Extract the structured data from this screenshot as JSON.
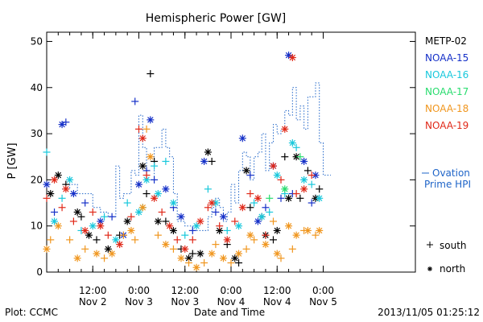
{
  "chart_data": {
    "type": "scatter",
    "title": "Hemispheric Power [GW]",
    "ylabel": "P [GW]",
    "xlabel": "Date and Time",
    "ylim": [
      0,
      52
    ],
    "xlim": [
      0,
      96
    ],
    "yticks": [
      0,
      10,
      20,
      30,
      40,
      50
    ],
    "xticks": [
      {
        "x": 12,
        "time": "12:00",
        "date": "Nov 2"
      },
      {
        "x": 24,
        "time": "0:00",
        "date": "Nov 3"
      },
      {
        "x": 36,
        "time": "12:00",
        "date": "Nov 3"
      },
      {
        "x": 48,
        "time": "0:00",
        "date": "Nov 4"
      },
      {
        "x": 60,
        "time": "12:00",
        "date": "Nov 4"
      },
      {
        "x": 72,
        "time": "0:00",
        "date": "Nov 5"
      }
    ],
    "x_unit": "hours since 2013-11-01 12:00",
    "grid": false,
    "legend_position": "right",
    "footer_left": "Plot: CCMC",
    "footer_right": "2013/11/05 01:25:12",
    "marker_legend": [
      {
        "symbol": "+",
        "label": "south"
      },
      {
        "symbol": "*",
        "label": "north"
      }
    ],
    "series": [
      {
        "name": "METP-02",
        "color": "#000000",
        "points": [
          [
            1,
            17,
            "n"
          ],
          [
            3,
            21,
            "n"
          ],
          [
            5,
            19,
            "p"
          ],
          [
            8,
            13,
            "n"
          ],
          [
            9,
            12,
            "p"
          ],
          [
            11,
            8,
            "n"
          ],
          [
            13,
            7,
            "p"
          ],
          [
            16,
            5,
            "n"
          ],
          [
            19,
            8,
            "p"
          ],
          [
            21,
            11,
            "n"
          ],
          [
            25,
            23,
            "n"
          ],
          [
            26,
            17,
            "p"
          ],
          [
            27,
            43,
            "p"
          ],
          [
            28,
            24,
            "p"
          ],
          [
            29,
            11,
            "n"
          ],
          [
            31,
            11,
            "p"
          ],
          [
            33,
            9,
            "n"
          ],
          [
            35,
            5,
            "p"
          ],
          [
            37,
            3,
            "n"
          ],
          [
            38,
            4,
            "p"
          ],
          [
            40,
            4,
            "n"
          ],
          [
            42,
            26,
            "n"
          ],
          [
            43,
            24,
            "p"
          ],
          [
            45,
            9,
            "n"
          ],
          [
            47,
            6,
            "p"
          ],
          [
            49,
            3,
            "n"
          ],
          [
            50,
            2,
            "p"
          ],
          [
            52,
            22,
            "n"
          ],
          [
            53,
            14,
            "p"
          ],
          [
            56,
            12,
            "p"
          ],
          [
            57,
            8,
            "n"
          ],
          [
            59,
            7,
            "p"
          ],
          [
            60,
            9,
            "n"
          ],
          [
            62,
            25,
            "p"
          ],
          [
            63,
            16,
            "n"
          ],
          [
            65,
            25,
            "n"
          ],
          [
            66,
            16,
            "p"
          ],
          [
            68,
            22,
            "p"
          ],
          [
            70,
            16,
            "n"
          ],
          [
            71,
            18,
            "p"
          ]
        ]
      },
      {
        "name": "NOAA-15",
        "color": "#1530c8",
        "points": [
          [
            0,
            19,
            "n"
          ],
          [
            2,
            13,
            "p"
          ],
          [
            4,
            32,
            "n"
          ],
          [
            5,
            32.5,
            "p"
          ],
          [
            7,
            17,
            "n"
          ],
          [
            10,
            15,
            "p"
          ],
          [
            14,
            11,
            "n"
          ],
          [
            17,
            12,
            "p"
          ],
          [
            20,
            8,
            "n"
          ],
          [
            23,
            37,
            "p"
          ],
          [
            24,
            19,
            "n"
          ],
          [
            26,
            22,
            "p"
          ],
          [
            27,
            33,
            "n"
          ],
          [
            28,
            20,
            "p"
          ],
          [
            31,
            18,
            "n"
          ],
          [
            33,
            14,
            "p"
          ],
          [
            35,
            12,
            "n"
          ],
          [
            38,
            9,
            "p"
          ],
          [
            41,
            24,
            "n"
          ],
          [
            44,
            13,
            "p"
          ],
          [
            46,
            12,
            "n"
          ],
          [
            51,
            29,
            "n"
          ],
          [
            53,
            21,
            "p"
          ],
          [
            55,
            11,
            "n"
          ],
          [
            57,
            14,
            "p"
          ],
          [
            59,
            23,
            "n"
          ],
          [
            61,
            16,
            "p"
          ],
          [
            63,
            47,
            "n"
          ],
          [
            64,
            17,
            "p"
          ],
          [
            67,
            24,
            "n"
          ],
          [
            69,
            15,
            "p"
          ],
          [
            70,
            21,
            "n"
          ]
        ]
      },
      {
        "name": "NOAA-16",
        "color": "#18c8dc",
        "points": [
          [
            0,
            26,
            "p"
          ],
          [
            2,
            11,
            "n"
          ],
          [
            4,
            16,
            "p"
          ],
          [
            6,
            20,
            "n"
          ],
          [
            9,
            9,
            "p"
          ],
          [
            12,
            10,
            "n"
          ],
          [
            15,
            12,
            "p"
          ],
          [
            18,
            7,
            "n"
          ],
          [
            21,
            15,
            "p"
          ],
          [
            24,
            13,
            "n"
          ],
          [
            25,
            14,
            "p"
          ],
          [
            26,
            20,
            "n"
          ],
          [
            28,
            23,
            "p"
          ],
          [
            29,
            17,
            "n"
          ],
          [
            31,
            24,
            "p"
          ],
          [
            33,
            15,
            "n"
          ],
          [
            36,
            8,
            "p"
          ],
          [
            39,
            10,
            "n"
          ],
          [
            42,
            18,
            "p"
          ],
          [
            44,
            15,
            "n"
          ],
          [
            47,
            9,
            "p"
          ],
          [
            50,
            10,
            "n"
          ],
          [
            54,
            15,
            "p"
          ],
          [
            56,
            12,
            "n"
          ],
          [
            58,
            13,
            "p"
          ],
          [
            60,
            21,
            "n"
          ],
          [
            62,
            17,
            "p"
          ],
          [
            64,
            28,
            "n"
          ],
          [
            65,
            27,
            "p"
          ],
          [
            67,
            20,
            "n"
          ],
          [
            69,
            19,
            "p"
          ],
          [
            71,
            16,
            "n"
          ]
        ]
      },
      {
        "name": "NOAA-17",
        "color": "#28dc6e",
        "points": [
          [
            58,
            16,
            "p"
          ],
          [
            62,
            18,
            "n"
          ],
          [
            66,
            25,
            "p"
          ]
        ]
      },
      {
        "name": "NOAA-18",
        "color": "#f0961e",
        "points": [
          [
            0,
            5,
            "n"
          ],
          [
            1,
            7,
            "p"
          ],
          [
            3,
            10,
            "n"
          ],
          [
            6,
            7,
            "p"
          ],
          [
            8,
            3,
            "n"
          ],
          [
            10,
            5,
            "p"
          ],
          [
            13,
            4,
            "n"
          ],
          [
            15,
            3,
            "p"
          ],
          [
            17,
            4,
            "n"
          ],
          [
            20,
            8,
            "p"
          ],
          [
            22,
            9,
            "n"
          ],
          [
            23,
            7,
            "p"
          ],
          [
            25,
            14,
            "n"
          ],
          [
            26,
            31,
            "p"
          ],
          [
            27,
            25,
            "n"
          ],
          [
            29,
            8,
            "p"
          ],
          [
            31,
            6,
            "n"
          ],
          [
            33,
            5,
            "p"
          ],
          [
            35,
            3,
            "n"
          ],
          [
            37,
            2,
            "p"
          ],
          [
            39,
            1,
            "n"
          ],
          [
            41,
            2,
            "p"
          ],
          [
            43,
            4,
            "n"
          ],
          [
            44,
            6,
            "p"
          ],
          [
            46,
            3,
            "n"
          ],
          [
            48,
            2,
            "p"
          ],
          [
            50,
            4,
            "n"
          ],
          [
            52,
            5,
            "p"
          ],
          [
            53,
            8,
            "n"
          ],
          [
            54,
            7,
            "p"
          ],
          [
            57,
            6,
            "n"
          ],
          [
            59,
            11,
            "p"
          ],
          [
            60,
            4,
            "n"
          ],
          [
            61,
            3,
            "p"
          ],
          [
            63,
            10,
            "n"
          ],
          [
            64,
            5,
            "p"
          ],
          [
            65,
            8,
            "n"
          ],
          [
            67,
            9,
            "p"
          ],
          [
            68,
            9,
            "n"
          ],
          [
            70,
            8,
            "p"
          ],
          [
            71,
            9,
            "n"
          ]
        ]
      },
      {
        "name": "NOAA-19",
        "color": "#e02818",
        "points": [
          [
            0,
            16,
            "p"
          ],
          [
            2,
            20,
            "n"
          ],
          [
            4,
            14,
            "p"
          ],
          [
            5,
            18,
            "n"
          ],
          [
            7,
            11,
            "p"
          ],
          [
            10,
            9,
            "n"
          ],
          [
            12,
            13,
            "p"
          ],
          [
            14,
            10,
            "n"
          ],
          [
            16,
            8,
            "p"
          ],
          [
            19,
            6,
            "n"
          ],
          [
            22,
            12,
            "p"
          ],
          [
            24,
            31,
            "p"
          ],
          [
            25,
            29,
            "n"
          ],
          [
            26,
            21,
            "p"
          ],
          [
            28,
            16,
            "n"
          ],
          [
            30,
            13,
            "p"
          ],
          [
            32,
            10,
            "n"
          ],
          [
            34,
            7,
            "p"
          ],
          [
            36,
            5,
            "n"
          ],
          [
            38,
            7,
            "p"
          ],
          [
            40,
            11,
            "n"
          ],
          [
            42,
            14,
            "p"
          ],
          [
            43,
            15,
            "n"
          ],
          [
            45,
            10,
            "p"
          ],
          [
            47,
            7,
            "n"
          ],
          [
            49,
            11,
            "p"
          ],
          [
            51,
            14,
            "n"
          ],
          [
            53,
            17,
            "p"
          ],
          [
            55,
            16,
            "n"
          ],
          [
            57,
            8,
            "p"
          ],
          [
            59,
            23,
            "n"
          ],
          [
            61,
            20,
            "p"
          ],
          [
            62,
            31,
            "n"
          ],
          [
            64,
            46.5,
            "n"
          ],
          [
            65,
            17,
            "p"
          ],
          [
            67,
            18,
            "n"
          ],
          [
            69,
            21,
            "p"
          ]
        ]
      }
    ],
    "ovation": {
      "name_line1": "Ovation",
      "name_line2": "Prime HPI",
      "color": "#1e64c8",
      "steps": [
        [
          4,
          18
        ],
        [
          6,
          19
        ],
        [
          8,
          17
        ],
        [
          10,
          17
        ],
        [
          12,
          14
        ],
        [
          14,
          13
        ],
        [
          16,
          12
        ],
        [
          18,
          23
        ],
        [
          19,
          16
        ],
        [
          20,
          17
        ],
        [
          22,
          22
        ],
        [
          23,
          21
        ],
        [
          24,
          34
        ],
        [
          25,
          27
        ],
        [
          26,
          20
        ],
        [
          28,
          27
        ],
        [
          30,
          31
        ],
        [
          31,
          27
        ],
        [
          32,
          25
        ],
        [
          33,
          17
        ],
        [
          34,
          11
        ],
        [
          36,
          10
        ],
        [
          38,
          9
        ],
        [
          40,
          9
        ],
        [
          42,
          12
        ],
        [
          43,
          14
        ],
        [
          44,
          16
        ],
        [
          45,
          14
        ],
        [
          46,
          11
        ],
        [
          47,
          13
        ],
        [
          48,
          19
        ],
        [
          49,
          15
        ],
        [
          50,
          22
        ],
        [
          51,
          26
        ],
        [
          52,
          25
        ],
        [
          53,
          20
        ],
        [
          54,
          25
        ],
        [
          55,
          26
        ],
        [
          56,
          30
        ],
        [
          57,
          22
        ],
        [
          58,
          28
        ],
        [
          59,
          32
        ],
        [
          60,
          30
        ],
        [
          61,
          31
        ],
        [
          62,
          35
        ],
        [
          63,
          34
        ],
        [
          64,
          40
        ],
        [
          65,
          33
        ],
        [
          66,
          36
        ],
        [
          67,
          31
        ],
        [
          68,
          38
        ],
        [
          70,
          41
        ],
        [
          71,
          28
        ],
        [
          72,
          21
        ],
        [
          74,
          21
        ]
      ]
    }
  }
}
